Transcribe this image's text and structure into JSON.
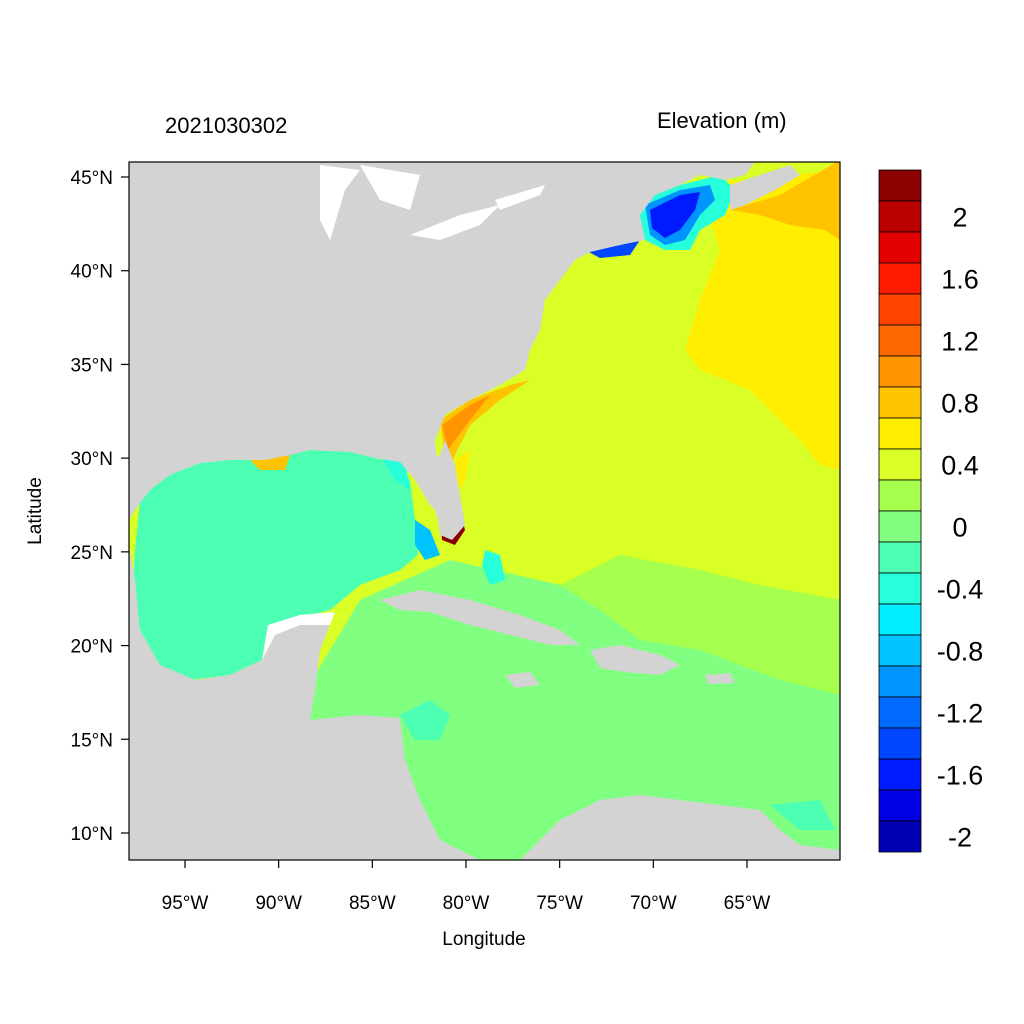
{
  "header": {
    "date_label": "2021030302",
    "variable_label": "Elevation (m)"
  },
  "axes": {
    "xlabel": "Longitude",
    "ylabel": "Latitude",
    "x_ticks": [
      "95°W",
      "90°W",
      "85°W",
      "80°W",
      "75°W",
      "70°W",
      "65°W"
    ],
    "y_ticks": [
      "45°N",
      "40°N",
      "35°N",
      "30°N",
      "25°N",
      "20°N",
      "15°N",
      "10°N"
    ]
  },
  "colorbar": {
    "labels": [
      "2",
      "1.6",
      "1.2",
      "0.8",
      "0.4",
      "0",
      "-0.4",
      "-0.8",
      "-1.2",
      "-1.6",
      "-2"
    ],
    "colors": [
      "#8b0000",
      "#bb0000",
      "#e30000",
      "#ff1a00",
      "#ff4500",
      "#ff6a00",
      "#ff9400",
      "#ffc300",
      "#ffee00",
      "#d9ff26",
      "#a6ff4d",
      "#80ff80",
      "#4dffb3",
      "#26ffd9",
      "#00eeff",
      "#00c3ff",
      "#0094ff",
      "#006aff",
      "#0045ff",
      "#001aff",
      "#0000e3",
      "#0000b3"
    ]
  },
  "colors": {
    "land": "#d3d3d3",
    "water_white": "#ffffff"
  }
}
